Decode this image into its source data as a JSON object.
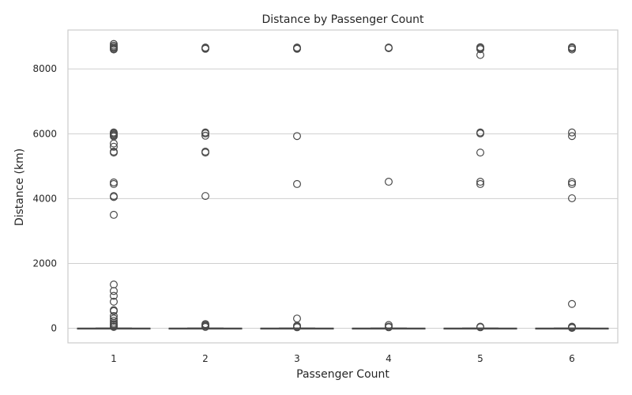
{
  "chart_data": {
    "type": "box",
    "title": "Distance by Passenger Count",
    "xlabel": "Passenger Count",
    "ylabel": "Distance (km)",
    "categories": [
      "1",
      "2",
      "3",
      "4",
      "5",
      "6"
    ],
    "yticks": [
      0,
      2000,
      4000,
      6000,
      8000
    ],
    "ylim": [
      -450,
      9200
    ],
    "grid": true,
    "series": [
      {
        "category": "1",
        "box": {
          "q1": 0,
          "median": 0,
          "q3": 5,
          "whisker_low": 0,
          "whisker_high": 10
        },
        "outliers": [
          8770,
          8720,
          8680,
          8650,
          8620,
          8600,
          6040,
          6010,
          5980,
          5950,
          5920,
          5700,
          5600,
          5450,
          5420,
          4500,
          4450,
          4080,
          4050,
          3500,
          1350,
          1150,
          1000,
          820,
          560,
          530,
          380,
          300,
          230,
          170,
          130,
          100,
          60,
          40
        ]
      },
      {
        "category": "2",
        "box": {
          "q1": 0,
          "median": 0,
          "q3": 5,
          "whisker_low": 0,
          "whisker_high": 10
        },
        "outliers": [
          8660,
          8640,
          8620,
          6040,
          6010,
          5940,
          5450,
          5420,
          4080,
          130,
          100,
          70,
          40
        ]
      },
      {
        "category": "3",
        "box": {
          "q1": 0,
          "median": 0,
          "q3": 5,
          "whisker_low": 0,
          "whisker_high": 10
        },
        "outliers": [
          8660,
          8640,
          8620,
          5930,
          4450,
          300,
          80,
          50,
          30
        ]
      },
      {
        "category": "4",
        "box": {
          "q1": 0,
          "median": 0,
          "q3": 5,
          "whisker_low": 0,
          "whisker_high": 10
        },
        "outliers": [
          8660,
          8640,
          4520,
          100,
          50,
          30
        ]
      },
      {
        "category": "5",
        "box": {
          "q1": 0,
          "median": 0,
          "q3": 5,
          "whisker_low": 0,
          "whisker_high": 10
        },
        "outliers": [
          8670,
          8640,
          8610,
          8430,
          6040,
          6010,
          5420,
          4520,
          4450,
          50,
          30
        ]
      },
      {
        "category": "6",
        "box": {
          "q1": 0,
          "median": 0,
          "q3": 5,
          "whisker_low": 0,
          "whisker_high": 10
        },
        "outliers": [
          8670,
          8640,
          8600,
          6040,
          5930,
          4510,
          4450,
          4010,
          750,
          50,
          30,
          10
        ]
      }
    ],
    "colors": {
      "background": "#ffffff",
      "grid": "#cfcfcf",
      "axes": "#cccccc",
      "text": "#262626",
      "box": "#4a4a4a",
      "outlier": "#4a4a4a"
    }
  }
}
